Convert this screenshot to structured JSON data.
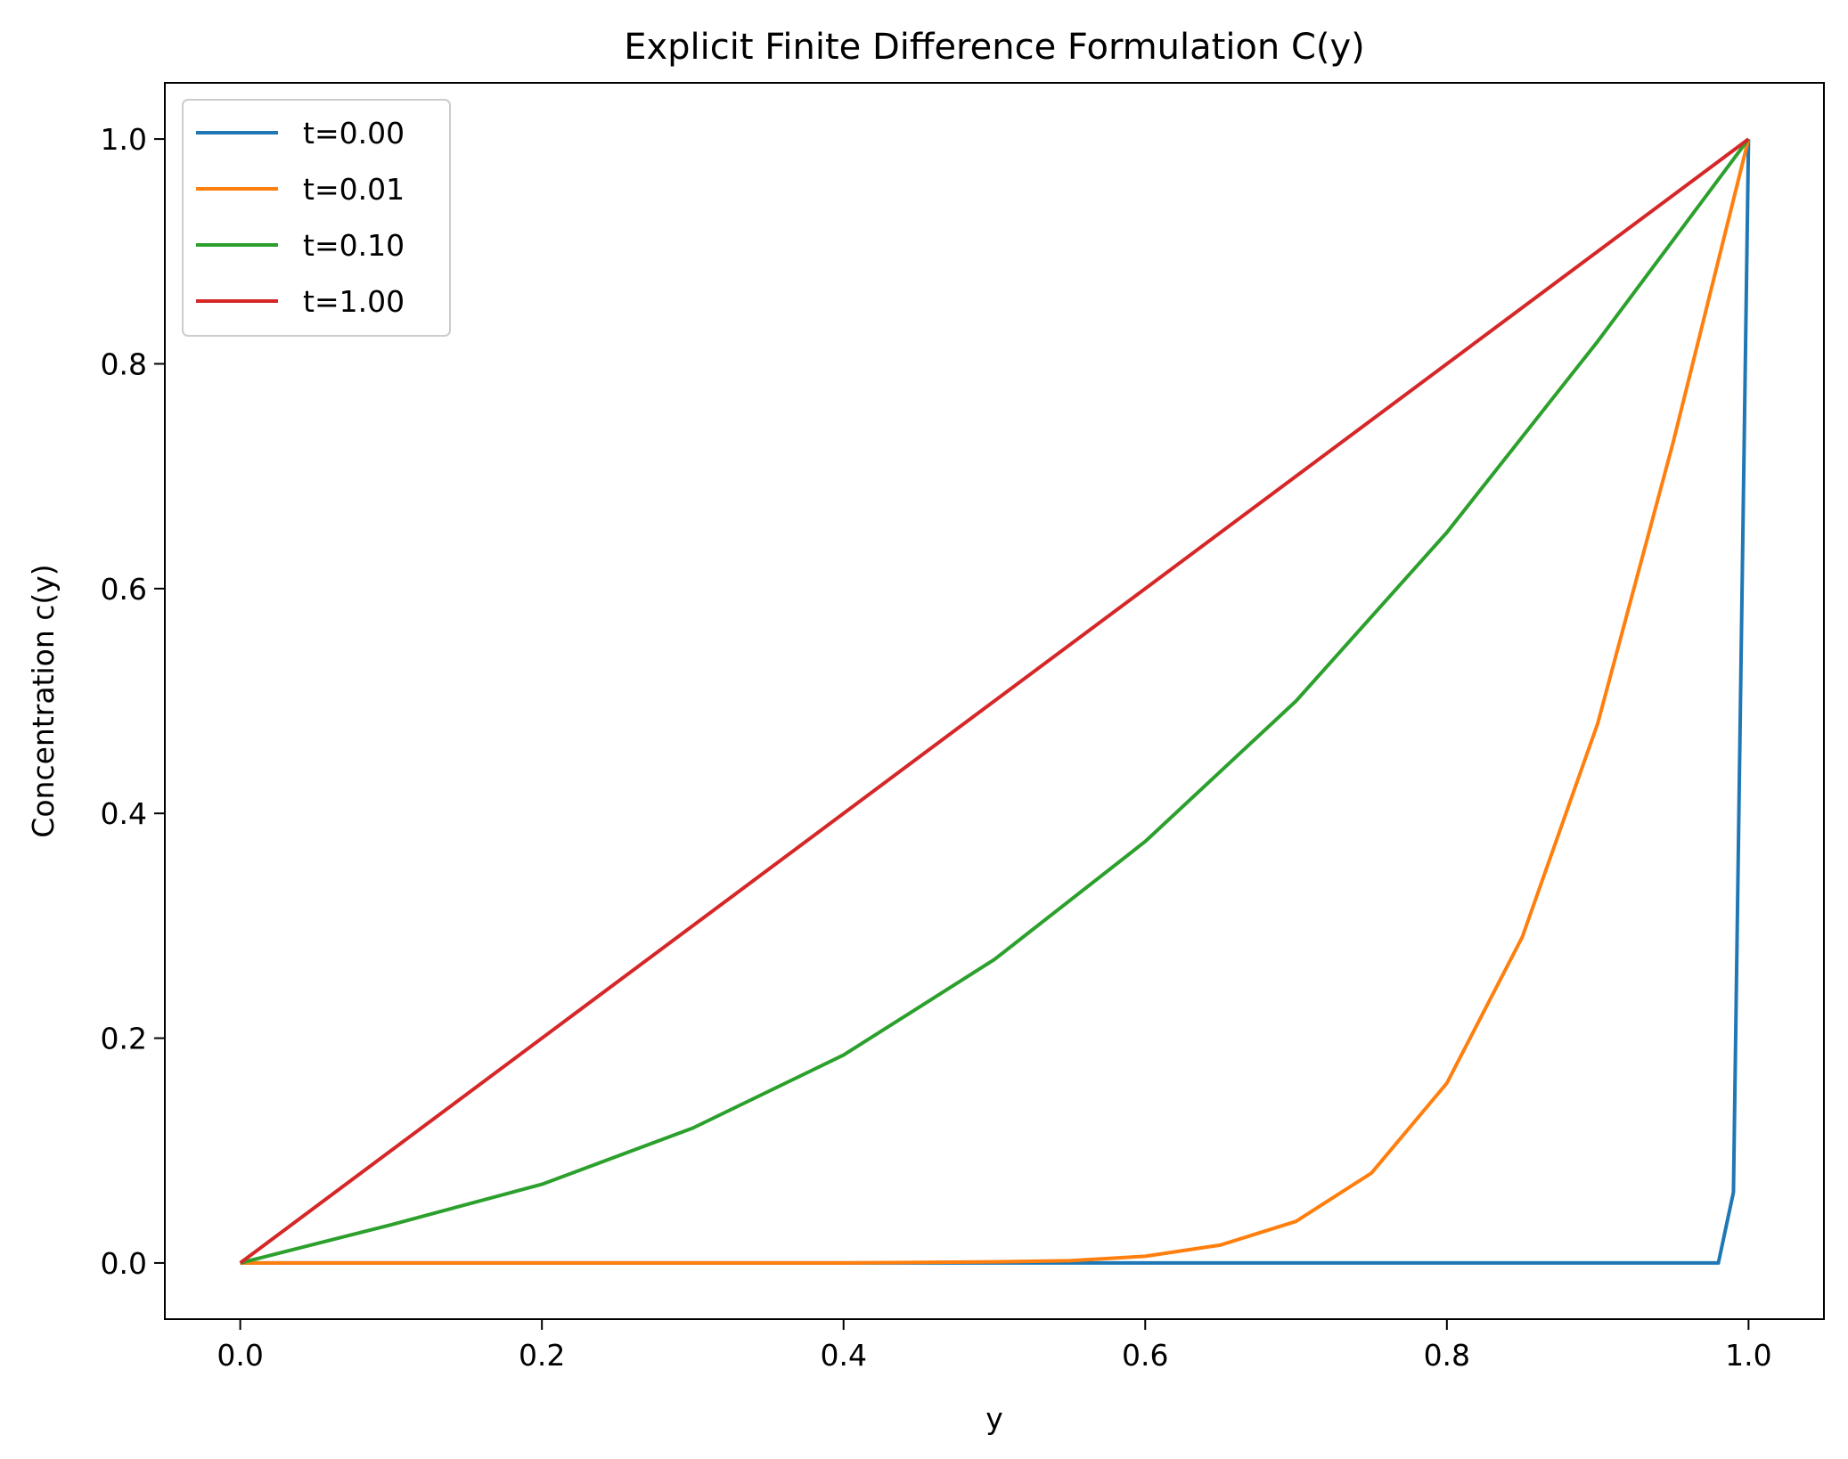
{
  "chart_data": {
    "type": "line",
    "title": "Explicit Finite Difference Formulation C(y)",
    "xlabel": "y",
    "ylabel": "Concentration c(y)",
    "xlim": [
      -0.05,
      1.05
    ],
    "ylim": [
      -0.05,
      1.05
    ],
    "xticks": [
      0.0,
      0.2,
      0.4,
      0.6,
      0.8,
      1.0
    ],
    "yticks": [
      0.0,
      0.2,
      0.4,
      0.6,
      0.8,
      1.0
    ],
    "xtick_labels": [
      "0.0",
      "0.2",
      "0.4",
      "0.6",
      "0.8",
      "1.0"
    ],
    "ytick_labels": [
      "0.0",
      "0.2",
      "0.4",
      "0.6",
      "0.8",
      "1.0"
    ],
    "grid": false,
    "legend_position": "top-left",
    "series": [
      {
        "name": "t=0.00",
        "color": "#1f77b4",
        "x": [
          0.0,
          0.98,
          0.99,
          1.0
        ],
        "y": [
          0.0,
          0.0,
          0.063,
          1.0
        ]
      },
      {
        "name": "t=0.01",
        "color": "#ff7f0e",
        "x": [
          0.0,
          0.4,
          0.5,
          0.55,
          0.6,
          0.65,
          0.7,
          0.75,
          0.8,
          0.85,
          0.9,
          0.95,
          1.0
        ],
        "y": [
          0.0,
          0.0,
          0.001,
          0.002,
          0.006,
          0.016,
          0.037,
          0.08,
          0.16,
          0.29,
          0.48,
          0.73,
          1.0
        ]
      },
      {
        "name": "t=0.10",
        "color": "#2ca02c",
        "x": [
          0.0,
          0.1,
          0.2,
          0.3,
          0.4,
          0.5,
          0.6,
          0.7,
          0.8,
          0.9,
          1.0
        ],
        "y": [
          0.0,
          0.034,
          0.07,
          0.12,
          0.185,
          0.27,
          0.375,
          0.5,
          0.65,
          0.82,
          1.0
        ]
      },
      {
        "name": "t=1.00",
        "color": "#d62728",
        "x": [
          0.0,
          1.0
        ],
        "y": [
          0.0,
          1.0
        ]
      }
    ]
  }
}
